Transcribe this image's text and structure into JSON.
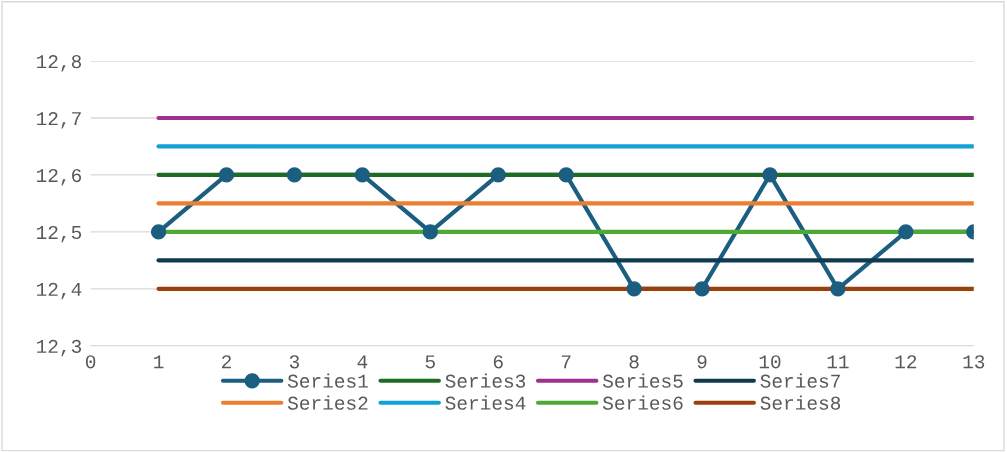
{
  "chart_data": {
    "type": "line",
    "x": [
      1,
      2,
      3,
      4,
      5,
      6,
      7,
      8,
      9,
      10,
      11,
      12,
      13
    ],
    "series": [
      {
        "name": "Series1",
        "color": "#1b5e80",
        "marker": "circle",
        "values": [
          12.5,
          12.6,
          12.6,
          12.6,
          12.5,
          12.6,
          12.6,
          12.4,
          12.4,
          12.6,
          12.4,
          12.5,
          12.5
        ]
      },
      {
        "name": "Series2",
        "color": "#ed7d31",
        "values": [
          12.55,
          12.55,
          12.55,
          12.55,
          12.55,
          12.55,
          12.55,
          12.55,
          12.55,
          12.55,
          12.55,
          12.55,
          12.55
        ]
      },
      {
        "name": "Series3",
        "color": "#1e6b24",
        "values": [
          12.6,
          12.6,
          12.6,
          12.6,
          12.6,
          12.6,
          12.6,
          12.6,
          12.6,
          12.6,
          12.6,
          12.6,
          12.6
        ]
      },
      {
        "name": "Series4",
        "color": "#12a0d6",
        "values": [
          12.65,
          12.65,
          12.65,
          12.65,
          12.65,
          12.65,
          12.65,
          12.65,
          12.65,
          12.65,
          12.65,
          12.65,
          12.65
        ]
      },
      {
        "name": "Series5",
        "color": "#a0308f",
        "values": [
          12.7,
          12.7,
          12.7,
          12.7,
          12.7,
          12.7,
          12.7,
          12.7,
          12.7,
          12.7,
          12.7,
          12.7,
          12.7
        ]
      },
      {
        "name": "Series6",
        "color": "#4eaa33",
        "values": [
          12.5,
          12.5,
          12.5,
          12.5,
          12.5,
          12.5,
          12.5,
          12.5,
          12.5,
          12.5,
          12.5,
          12.5,
          12.5
        ]
      },
      {
        "name": "Series7",
        "color": "#0f3a4f",
        "values": [
          12.45,
          12.45,
          12.45,
          12.45,
          12.45,
          12.45,
          12.45,
          12.45,
          12.45,
          12.45,
          12.45,
          12.45,
          12.45
        ]
      },
      {
        "name": "Series8",
        "color": "#9c3f0b",
        "values": [
          12.4,
          12.4,
          12.4,
          12.4,
          12.4,
          12.4,
          12.4,
          12.4,
          12.4,
          12.4,
          12.4,
          12.4,
          12.4
        ]
      }
    ],
    "xlim": [
      0,
      13
    ],
    "xticks": [
      0,
      1,
      2,
      3,
      4,
      5,
      6,
      7,
      8,
      9,
      10,
      11,
      12,
      13
    ],
    "ylim": [
      12.3,
      12.8
    ],
    "yticks": [
      {
        "value": 12.3,
        "label": "12,3"
      },
      {
        "value": 12.4,
        "label": "12,4"
      },
      {
        "value": 12.5,
        "label": "12,5"
      },
      {
        "value": 12.6,
        "label": "12,6"
      },
      {
        "value": 12.7,
        "label": "12,7"
      },
      {
        "value": 12.8,
        "label": "12,8"
      }
    ],
    "grid": "y",
    "legend": "bottom",
    "line_style": "solid"
  }
}
